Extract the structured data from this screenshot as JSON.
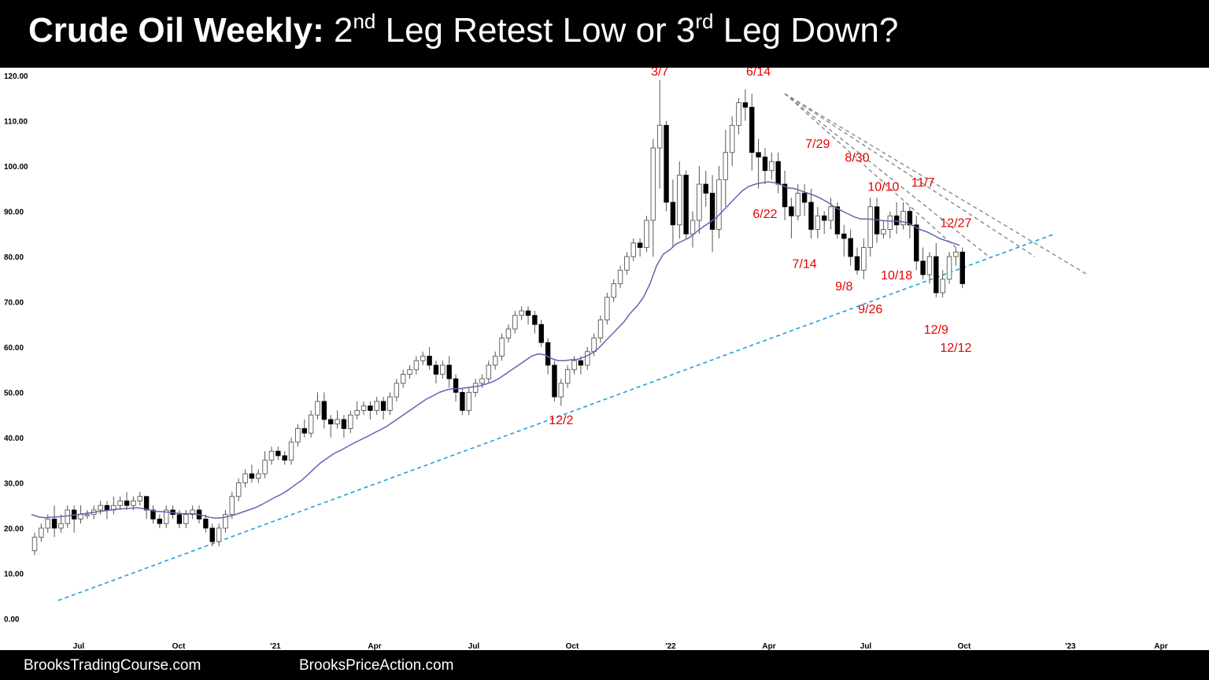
{
  "title": {
    "bold_part": "Crude Oil Weekly:",
    "part1": " 2",
    "sup1": "nd",
    "part2": " Leg Retest Low or 3",
    "sup2": "rd",
    "part3": " Leg Down?"
  },
  "footer": {
    "left": "BrooksTradingCourse.com",
    "right": "BrooksPriceAction.com"
  },
  "colors": {
    "bull_body": "#ffffff",
    "bear_body": "#000000",
    "wick": "#555555",
    "ema": "#6464b4",
    "trend_line": "#1fa0d8",
    "resistance_lines": "#888888",
    "annotation": "#e60000"
  },
  "chart_data": {
    "type": "candlestick",
    "ylim": [
      0,
      120
    ],
    "y_ticks": [
      "120.00",
      "110.00",
      "100.00",
      "90.00",
      "80.00",
      "70.00",
      "60.00",
      "50.00",
      "40.00",
      "30.00",
      "20.00",
      "10.00",
      "0.00"
    ],
    "x_ticks": [
      "Jul",
      "Oct",
      "'21",
      "Apr",
      "Jul",
      "Oct",
      "'22",
      "Apr",
      "Jul",
      "Oct",
      "'23",
      "Apr"
    ],
    "candles": [
      [
        15,
        18,
        14,
        19
      ],
      [
        18,
        20,
        17,
        21
      ],
      [
        20,
        22,
        19,
        23
      ],
      [
        22,
        20,
        18,
        25
      ],
      [
        20,
        21,
        19,
        23
      ],
      [
        21,
        24,
        20,
        25
      ],
      [
        24,
        22,
        19,
        25
      ],
      [
        22,
        23,
        21,
        25
      ],
      [
        23,
        23,
        22,
        24
      ],
      [
        23,
        24,
        22,
        25
      ],
      [
        24,
        25,
        23,
        26
      ],
      [
        25,
        24,
        22,
        26
      ],
      [
        24,
        25,
        23,
        27
      ],
      [
        25,
        26,
        24,
        27
      ],
      [
        26,
        25,
        24,
        28
      ],
      [
        25,
        26,
        24,
        27
      ],
      [
        26,
        27,
        25,
        28
      ],
      [
        27,
        24,
        22,
        27
      ],
      [
        24,
        22,
        21,
        25
      ],
      [
        22,
        21,
        20,
        23
      ],
      [
        21,
        24,
        20,
        25
      ],
      [
        24,
        23,
        22,
        25
      ],
      [
        23,
        21,
        20,
        24
      ],
      [
        21,
        23,
        20,
        24
      ],
      [
        23,
        24,
        22,
        25
      ],
      [
        24,
        22,
        21,
        25
      ],
      [
        22,
        20,
        19,
        23
      ],
      [
        20,
        17,
        16,
        21
      ],
      [
        17,
        20,
        16,
        21
      ],
      [
        20,
        23,
        19,
        24
      ],
      [
        23,
        27,
        22,
        28
      ],
      [
        27,
        30,
        26,
        31
      ],
      [
        30,
        32,
        29,
        33
      ],
      [
        32,
        31,
        30,
        34
      ],
      [
        31,
        32,
        30,
        33
      ],
      [
        32,
        35,
        31,
        37
      ],
      [
        35,
        37,
        34,
        38
      ],
      [
        37,
        36,
        35,
        38
      ],
      [
        36,
        35,
        34,
        37
      ],
      [
        35,
        39,
        34,
        40
      ],
      [
        39,
        42,
        38,
        43
      ],
      [
        42,
        41,
        40,
        44
      ],
      [
        41,
        45,
        40,
        46
      ],
      [
        45,
        48,
        44,
        50
      ],
      [
        48,
        44,
        42,
        50
      ],
      [
        44,
        43,
        40,
        45
      ],
      [
        43,
        44,
        42,
        46
      ],
      [
        44,
        42,
        40,
        45
      ],
      [
        42,
        45,
        41,
        46
      ],
      [
        45,
        46,
        44,
        48
      ],
      [
        46,
        47,
        45,
        48
      ],
      [
        47,
        46,
        44,
        48
      ],
      [
        46,
        48,
        45,
        49
      ],
      [
        48,
        46,
        44,
        49
      ],
      [
        46,
        49,
        45,
        50
      ],
      [
        49,
        52,
        48,
        53
      ],
      [
        52,
        54,
        51,
        55
      ],
      [
        54,
        55,
        53,
        56
      ],
      [
        55,
        57,
        54,
        58
      ],
      [
        57,
        58,
        56,
        59
      ],
      [
        58,
        56,
        55,
        60
      ],
      [
        56,
        54,
        52,
        57
      ],
      [
        54,
        56,
        53,
        57
      ],
      [
        56,
        53,
        51,
        58
      ],
      [
        53,
        50,
        48,
        54
      ],
      [
        50,
        46,
        45,
        51
      ],
      [
        46,
        50,
        45,
        51
      ],
      [
        50,
        52,
        49,
        53
      ],
      [
        52,
        53,
        51,
        54
      ],
      [
        53,
        56,
        52,
        57
      ],
      [
        56,
        58,
        55,
        59
      ],
      [
        58,
        62,
        57,
        63
      ],
      [
        62,
        64,
        61,
        65
      ],
      [
        64,
        67,
        63,
        68
      ],
      [
        67,
        68,
        66,
        69
      ],
      [
        68,
        67,
        65,
        69
      ],
      [
        67,
        65,
        63,
        68
      ],
      [
        65,
        61,
        60,
        66
      ],
      [
        61,
        56,
        54,
        62
      ],
      [
        56,
        49,
        48,
        57
      ],
      [
        49,
        52,
        47,
        53
      ],
      [
        52,
        55,
        51,
        56
      ],
      [
        55,
        57,
        54,
        58
      ],
      [
        57,
        56,
        54,
        58
      ],
      [
        56,
        59,
        55,
        60
      ],
      [
        59,
        62,
        58,
        63
      ],
      [
        62,
        66,
        61,
        67
      ],
      [
        66,
        71,
        65,
        72
      ],
      [
        71,
        74,
        70,
        75
      ],
      [
        74,
        77,
        73,
        78
      ],
      [
        77,
        80,
        76,
        81
      ],
      [
        80,
        83,
        79,
        84
      ],
      [
        83,
        82,
        80,
        84
      ],
      [
        82,
        88,
        81,
        89
      ],
      [
        88,
        104,
        80,
        106
      ],
      [
        104,
        109,
        95,
        119
      ],
      [
        109,
        92,
        90,
        110
      ],
      [
        92,
        87,
        82,
        97
      ],
      [
        87,
        98,
        84,
        101
      ],
      [
        98,
        85,
        84,
        99
      ],
      [
        85,
        88,
        82,
        90
      ],
      [
        88,
        96,
        85,
        100
      ],
      [
        96,
        94,
        91,
        99
      ],
      [
        94,
        86,
        81,
        98
      ],
      [
        86,
        97,
        84,
        100
      ],
      [
        97,
        103,
        91,
        108
      ],
      [
        103,
        109,
        100,
        111
      ],
      [
        109,
        114,
        107,
        115
      ],
      [
        114,
        113,
        110,
        117
      ],
      [
        113,
        103,
        99,
        116
      ],
      [
        103,
        102,
        95,
        106
      ],
      [
        102,
        99,
        96,
        104
      ],
      [
        99,
        101,
        97,
        103
      ],
      [
        101,
        96,
        94,
        103
      ],
      [
        96,
        91,
        88,
        99
      ],
      [
        91,
        89,
        84,
        93
      ],
      [
        89,
        94,
        88,
        96
      ],
      [
        94,
        92,
        89,
        96
      ],
      [
        92,
        86,
        84,
        95
      ],
      [
        86,
        89,
        84,
        91
      ],
      [
        89,
        88,
        85,
        90
      ],
      [
        88,
        91,
        86,
        93
      ],
      [
        91,
        85,
        84,
        92
      ],
      [
        85,
        84,
        80,
        87
      ],
      [
        84,
        80,
        78,
        86
      ],
      [
        80,
        77,
        76,
        82
      ],
      [
        77,
        82,
        75,
        84
      ],
      [
        82,
        91,
        80,
        93
      ],
      [
        91,
        85,
        83,
        93
      ],
      [
        85,
        86,
        84,
        88
      ],
      [
        86,
        89,
        84,
        90
      ],
      [
        89,
        87,
        85,
        92
      ],
      [
        87,
        90,
        86,
        92
      ],
      [
        90,
        87,
        84,
        91
      ],
      [
        87,
        79,
        77,
        89
      ],
      [
        79,
        76,
        75,
        82
      ],
      [
        76,
        80,
        74,
        81
      ],
      [
        80,
        72,
        71,
        83
      ],
      [
        72,
        75,
        71,
        77
      ],
      [
        75,
        80,
        74,
        81
      ],
      [
        80,
        81,
        78,
        82
      ],
      [
        81,
        74,
        73,
        82
      ]
    ],
    "ema": [
      23,
      22.5,
      22.3,
      22.4,
      22.5,
      22.6,
      22.8,
      23,
      23.2,
      23.4,
      23.6,
      23.8,
      24,
      24.2,
      24.3,
      24.4,
      24.5,
      24.3,
      24,
      23.7,
      23.6,
      23.5,
      23.3,
      23.2,
      23.2,
      23.1,
      22.8,
      22.4,
      22.2,
      22.3,
      22.6,
      23,
      23.5,
      24,
      24.5,
      25.2,
      26,
      26.8,
      27.5,
      28.4,
      29.5,
      30.5,
      31.8,
      33.2,
      34.5,
      35.5,
      36.5,
      37.2,
      38,
      38.8,
      39.5,
      40.2,
      41,
      41.7,
      42.5,
      43.5,
      44.5,
      45.5,
      46.5,
      47.5,
      48.5,
      49.2,
      50,
      50.5,
      50.8,
      50.8,
      51,
      51.2,
      51.4,
      51.8,
      52.3,
      53,
      54,
      55,
      56,
      57,
      58,
      58.5,
      58.3,
      57.5,
      57,
      57,
      57.2,
      57.3,
      57.8,
      58.5,
      59.5,
      61,
      62.5,
      64,
      65.5,
      67.5,
      69,
      71,
      74,
      78,
      80.5,
      81.5,
      82.8,
      83.5,
      84.2,
      85.4,
      86.5,
      87.5,
      88.5,
      90,
      91.5,
      93,
      94.5,
      95.5,
      96,
      96.3,
      96.5,
      96.3,
      95.8,
      95.2,
      95,
      94.5,
      94,
      93.5,
      92.8,
      92,
      91,
      90.2,
      89.5,
      88.8,
      88.3,
      88.3,
      88.2,
      88,
      87.9,
      87.8,
      87.8,
      87.5,
      86.8,
      86,
      85.5,
      84.8,
      84,
      83.5,
      83,
      82.5
    ],
    "support_line": {
      "from": [
        0,
        4
      ],
      "to": [
        155,
        85
      ]
    },
    "resistance_lines": [
      {
        "from": [
          114,
          116
        ],
        "to": [
          160,
          76
        ]
      },
      {
        "from": [
          114,
          116
        ],
        "to": [
          152,
          80
        ]
      },
      {
        "from": [
          114,
          116
        ],
        "to": [
          145,
          80
        ]
      },
      {
        "from": [
          114,
          116
        ],
        "to": [
          140,
          82
        ]
      }
    ],
    "annotations": [
      {
        "text": "3/7",
        "x": 95,
        "y": 120
      },
      {
        "text": "6/14",
        "x": 110,
        "y": 120
      },
      {
        "text": "7/29",
        "x": 119,
        "y": 104
      },
      {
        "text": "8/30",
        "x": 125,
        "y": 101
      },
      {
        "text": "10/10",
        "x": 129,
        "y": 94.5
      },
      {
        "text": "11/7",
        "x": 135,
        "y": 95.5
      },
      {
        "text": "6/22",
        "x": 111,
        "y": 88.5
      },
      {
        "text": "12/27",
        "x": 140,
        "y": 86.5
      },
      {
        "text": "7/14",
        "x": 117,
        "y": 77.5
      },
      {
        "text": "9/8",
        "x": 123,
        "y": 72.5
      },
      {
        "text": "10/18",
        "x": 131,
        "y": 75
      },
      {
        "text": "9/26",
        "x": 127,
        "y": 67.5
      },
      {
        "text": "12/9",
        "x": 137,
        "y": 63
      },
      {
        "text": "12/12",
        "x": 140,
        "y": 59
      },
      {
        "text": "12/2",
        "x": 80,
        "y": 43
      }
    ]
  }
}
